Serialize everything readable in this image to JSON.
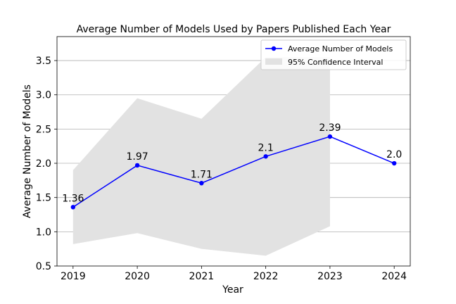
{
  "chart_data": {
    "type": "line",
    "title": "Average Number of Models Used by Papers Published Each Year",
    "xlabel": "Year",
    "ylabel": "Average Number of Models",
    "x": [
      2019,
      2020,
      2021,
      2022,
      2023,
      2024
    ],
    "series": [
      {
        "name": "Average Number of Models",
        "values": [
          1.36,
          1.97,
          1.71,
          2.1,
          2.39,
          2.0
        ],
        "labels": [
          "1.36",
          "1.97",
          "1.71",
          "2.1",
          "2.39",
          "2.0"
        ],
        "color": "#0000ff"
      }
    ],
    "confidence_interval": {
      "name": "95% Confidence Interval",
      "x": [
        2019,
        2020,
        2021,
        2022,
        2023
      ],
      "lower": [
        0.82,
        0.98,
        0.75,
        0.65,
        1.08
      ],
      "upper": [
        1.9,
        2.95,
        2.65,
        3.55,
        3.55
      ],
      "color": "#e2e2e2"
    },
    "xticks": [
      "2019",
      "2020",
      "2021",
      "2022",
      "2023",
      "2024"
    ],
    "yticks": [
      "0.5",
      "1.0",
      "1.5",
      "2.0",
      "2.5",
      "3.0",
      "3.5"
    ],
    "xlim": [
      2018.75,
      2024.25
    ],
    "ylim": [
      0.5,
      3.85
    ],
    "grid": "horizontal",
    "legend_position": "top-right"
  }
}
